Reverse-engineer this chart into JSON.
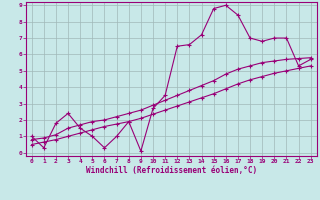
{
  "title": "",
  "xlabel": "Windchill (Refroidissement éolien,°C)",
  "ylabel": "",
  "bg_color": "#c8e8e8",
  "grid_color": "#a0b8b8",
  "line_color": "#990077",
  "xlim": [
    -0.5,
    23.5
  ],
  "ylim": [
    -0.2,
    9.2
  ],
  "xticks": [
    0,
    1,
    2,
    3,
    4,
    5,
    6,
    7,
    8,
    9,
    10,
    11,
    12,
    13,
    14,
    15,
    16,
    17,
    18,
    19,
    20,
    21,
    22,
    23
  ],
  "yticks": [
    0,
    1,
    2,
    3,
    4,
    5,
    6,
    7,
    8,
    9
  ],
  "series1_x": [
    0,
    1,
    2,
    3,
    4,
    5,
    6,
    7,
    8,
    9,
    10,
    11,
    12,
    13,
    14,
    15,
    16,
    17,
    18,
    19,
    20,
    21,
    22,
    23
  ],
  "series1_y": [
    1.0,
    0.3,
    1.8,
    2.4,
    1.5,
    1.0,
    0.3,
    1.0,
    1.9,
    0.1,
    2.7,
    3.5,
    6.5,
    6.6,
    7.2,
    8.8,
    9.0,
    8.4,
    7.0,
    6.8,
    7.0,
    7.0,
    5.3,
    5.7
  ],
  "series2_x": [
    0,
    1,
    2,
    3,
    4,
    5,
    6,
    7,
    8,
    9,
    10,
    11,
    12,
    13,
    14,
    15,
    16,
    17,
    18,
    19,
    20,
    21,
    22,
    23
  ],
  "series2_y": [
    0.8,
    0.9,
    1.1,
    1.5,
    1.7,
    1.9,
    2.0,
    2.2,
    2.4,
    2.6,
    2.9,
    3.2,
    3.5,
    3.8,
    4.1,
    4.4,
    4.8,
    5.1,
    5.3,
    5.5,
    5.6,
    5.7,
    5.75,
    5.8
  ],
  "series3_x": [
    0,
    1,
    2,
    3,
    4,
    5,
    6,
    7,
    8,
    9,
    10,
    11,
    12,
    13,
    14,
    15,
    16,
    17,
    18,
    19,
    20,
    21,
    22,
    23
  ],
  "series3_y": [
    0.5,
    0.65,
    0.8,
    1.0,
    1.2,
    1.4,
    1.6,
    1.75,
    1.9,
    2.1,
    2.35,
    2.6,
    2.85,
    3.1,
    3.35,
    3.6,
    3.9,
    4.2,
    4.45,
    4.65,
    4.85,
    5.0,
    5.15,
    5.3
  ]
}
